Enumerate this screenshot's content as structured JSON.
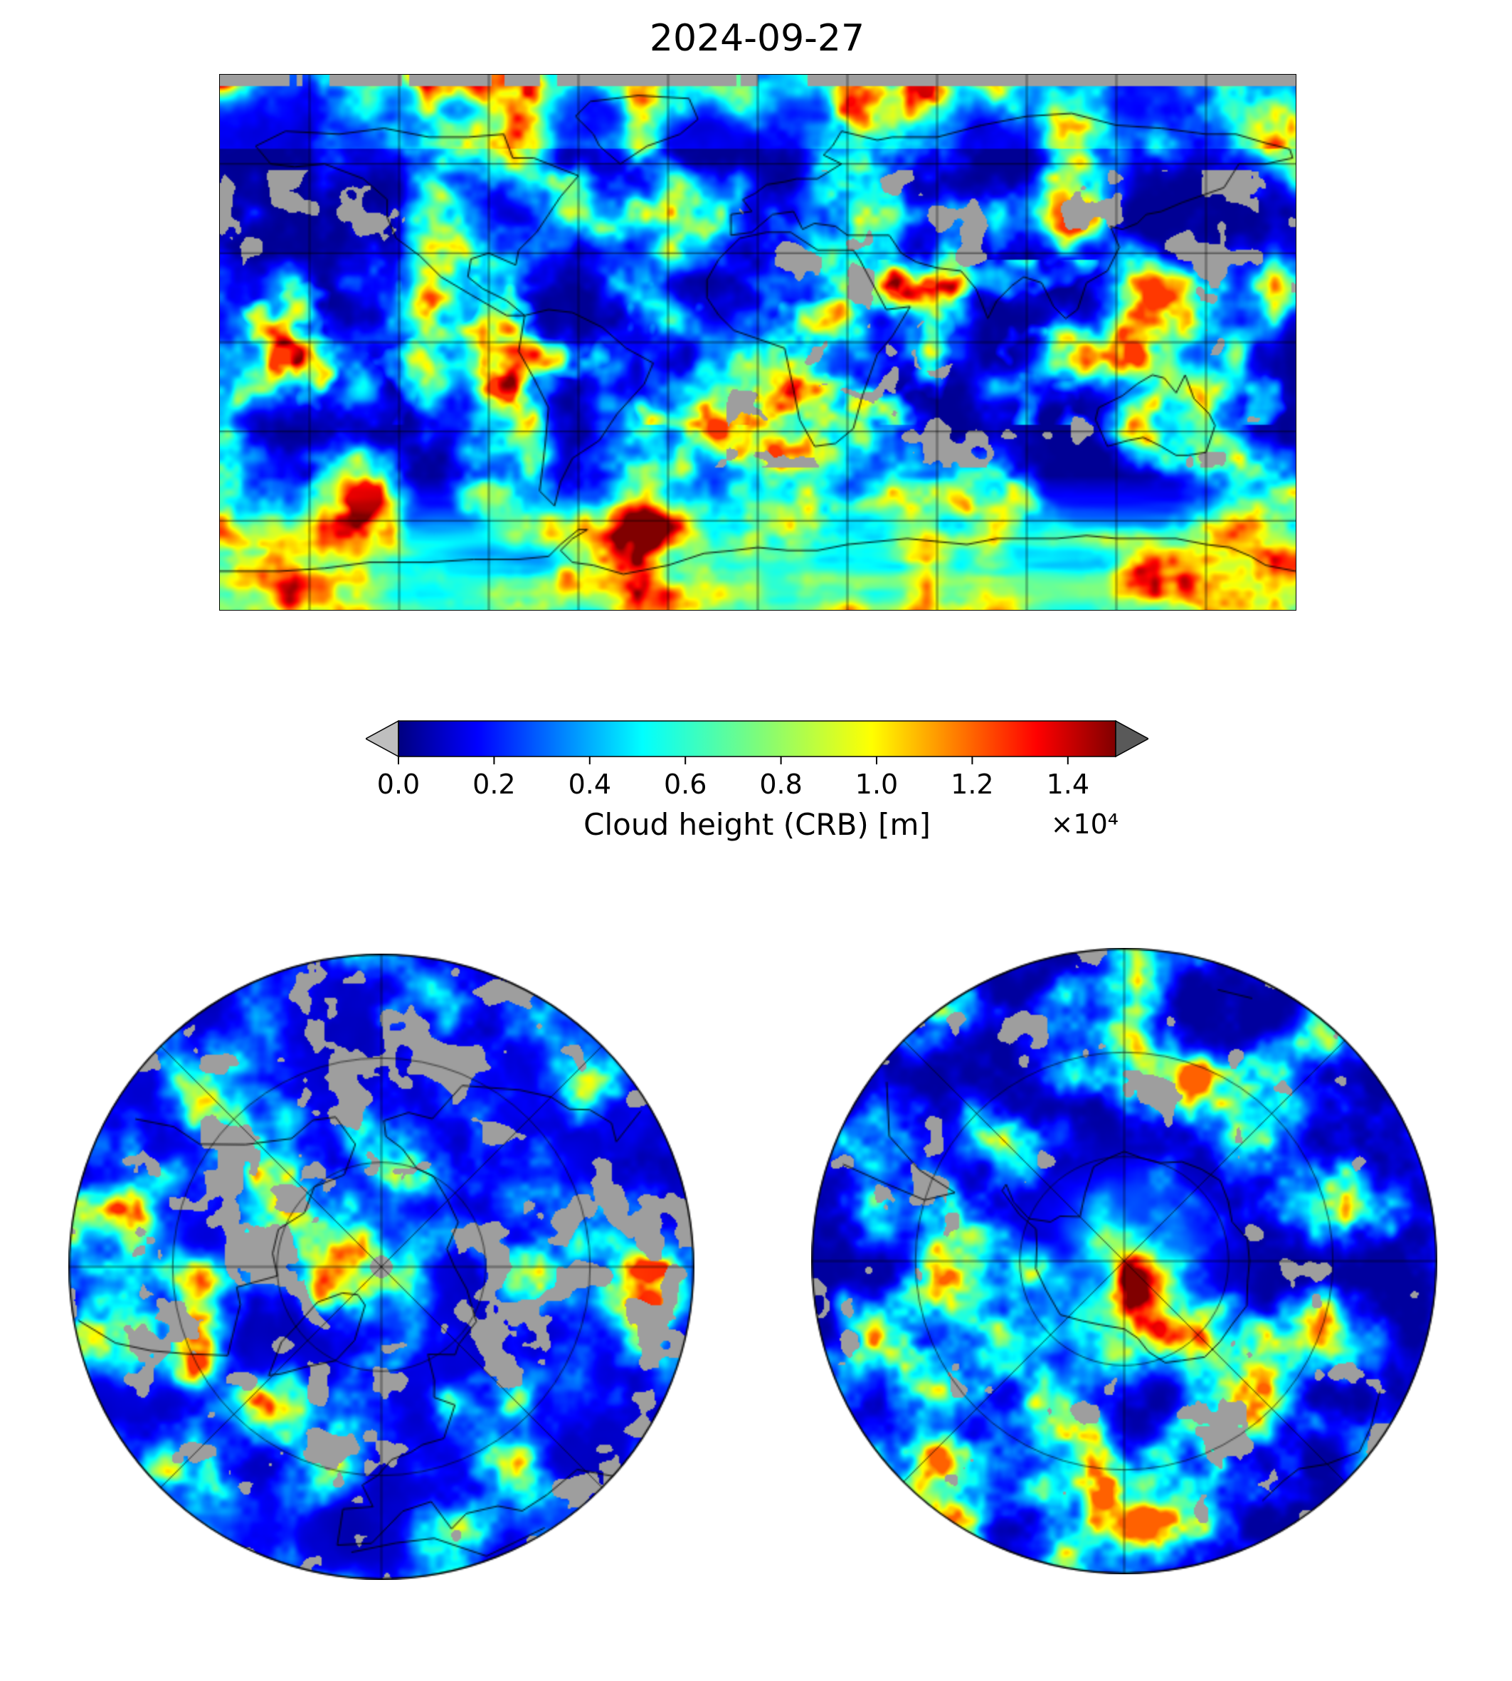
{
  "chart_data": {
    "type": "heatmap",
    "title": "2024-09-27",
    "panels": [
      {
        "name": "global-map",
        "projection": "equirectangular world map",
        "gridline_spacing_deg": 30,
        "lon_range": [
          -180,
          180
        ],
        "lat_range": [
          -90,
          90
        ]
      },
      {
        "name": "north-polar-map",
        "projection": "north polar view",
        "gridlines": true
      },
      {
        "name": "south-polar-map",
        "projection": "south polar view",
        "gridlines": true
      }
    ],
    "colorbar": {
      "label": "Cloud height (CRB) [m]",
      "scale_note": "×10⁴",
      "tick_labels": [
        "0.0",
        "0.2",
        "0.4",
        "0.6",
        "0.8",
        "1.0",
        "1.2",
        "1.4"
      ],
      "tick_values": [
        0,
        2000,
        4000,
        6000,
        8000,
        10000,
        12000,
        14000
      ],
      "value_range": [
        0,
        15000
      ],
      "colormap": "jet",
      "gradient_stops": [
        {
          "offset": 0.0,
          "color": "#000080"
        },
        {
          "offset": 0.11,
          "color": "#0000ff"
        },
        {
          "offset": 0.34,
          "color": "#00ffff"
        },
        {
          "offset": 0.5,
          "color": "#7cfc7c"
        },
        {
          "offset": 0.66,
          "color": "#ffff00"
        },
        {
          "offset": 0.89,
          "color": "#ff0000"
        },
        {
          "offset": 1.0,
          "color": "#800000"
        }
      ],
      "under_arrow_color": "#bfbfbf",
      "over_arrow_color": "#595959",
      "missing_data_color": "#9e9e9e",
      "coastline_color": "#000000"
    }
  }
}
